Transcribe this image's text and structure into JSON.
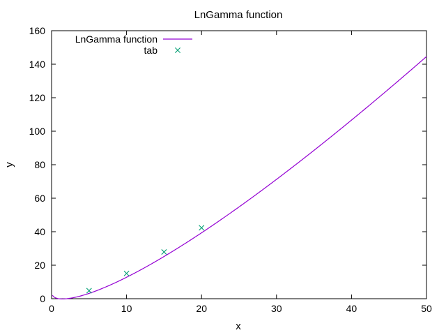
{
  "chart_data": {
    "type": "line",
    "title": "LnGamma function",
    "xlabel": "x",
    "ylabel": "y",
    "xlim": [
      0,
      50
    ],
    "ylim": [
      0,
      160
    ],
    "xticks": [
      0,
      10,
      20,
      30,
      40,
      50
    ],
    "yticks": [
      0,
      20,
      40,
      60,
      80,
      100,
      120,
      140,
      160
    ],
    "grid": false,
    "legend_position": "top-left",
    "series": [
      {
        "name": "LnGamma function",
        "style": "line",
        "color": "#9400d3",
        "function": "lgamma",
        "x": [
          0.5,
          1,
          1.5,
          2,
          3,
          4,
          5,
          6,
          8,
          10,
          12,
          15,
          18,
          20,
          25,
          30,
          35,
          40,
          45,
          50
        ],
        "values": [
          0.572,
          0,
          -0.121,
          0,
          0.693,
          1.792,
          3.178,
          4.787,
          8.525,
          12.802,
          17.502,
          25.191,
          33.505,
          39.34,
          54.785,
          71.257,
          88.58,
          106.63,
          125.32,
          144.57
        ]
      },
      {
        "name": "tab",
        "style": "points",
        "marker": "x",
        "color": "#009e73",
        "x": [
          5,
          10,
          15,
          20
        ],
        "values": [
          4.787,
          15.104,
          27.899,
          42.336
        ]
      }
    ]
  }
}
